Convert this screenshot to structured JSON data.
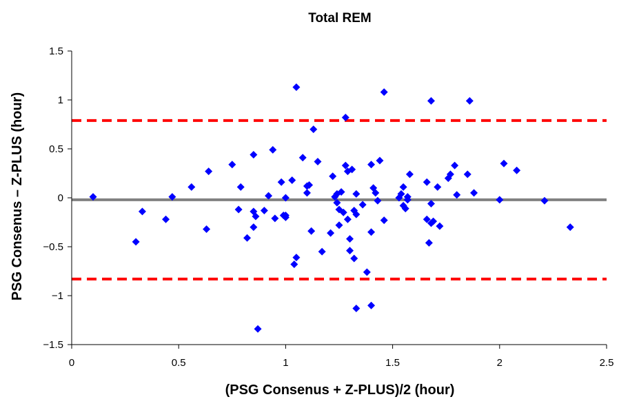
{
  "chart_data": {
    "type": "scatter",
    "title": "Total REM",
    "xlabel": "(PSG Consenus + Z-PLUS)/2 (hour)",
    "ylabel": "PSG Consenus – Z-PLUS (hour)",
    "xlim": [
      0,
      2.5
    ],
    "ylim": [
      -1.5,
      1.5
    ],
    "x_ticks": [
      "0",
      "0.5",
      "1",
      "1.5",
      "2",
      "2.5"
    ],
    "y_ticks": [
      "1.5",
      "1",
      "0.5",
      "0",
      "−0.5",
      "−1",
      "−1.5"
    ],
    "x_tick_values": [
      0,
      0.5,
      1,
      1.5,
      2,
      2.5
    ],
    "y_tick_values": [
      1.5,
      1,
      0.5,
      0,
      -0.5,
      -1,
      -1.5
    ],
    "grid": false,
    "legend": "none",
    "colors": {
      "points": "#0000ff",
      "mean_line": "#808080",
      "limit_lines": "#ff0000",
      "axes": "#000000"
    },
    "reference_lines": {
      "mean": -0.02,
      "upper_limit": 0.79,
      "lower_limit": -0.83
    },
    "series": [
      {
        "points": [
          [
            0.1,
            0.01
          ],
          [
            0.3,
            -0.45
          ],
          [
            0.33,
            -0.14
          ],
          [
            0.44,
            -0.22
          ],
          [
            0.47,
            0.01
          ],
          [
            0.56,
            0.11
          ],
          [
            0.63,
            -0.32
          ],
          [
            0.64,
            0.27
          ],
          [
            0.75,
            0.34
          ],
          [
            0.78,
            -0.12
          ],
          [
            0.79,
            0.11
          ],
          [
            0.82,
            -0.41
          ],
          [
            0.85,
            0.44
          ],
          [
            0.85,
            -0.14
          ],
          [
            0.85,
            -0.3
          ],
          [
            0.86,
            -0.19
          ],
          [
            0.87,
            -1.34
          ],
          [
            0.9,
            -0.13
          ],
          [
            0.92,
            0.02
          ],
          [
            0.94,
            0.49
          ],
          [
            0.95,
            -0.21
          ],
          [
            0.98,
            0.16
          ],
          [
            0.99,
            -0.18
          ],
          [
            1.0,
            -0.2
          ],
          [
            1.0,
            -0.18
          ],
          [
            1.0,
            0.0
          ],
          [
            1.03,
            0.18
          ],
          [
            1.04,
            -0.68
          ],
          [
            1.05,
            -0.61
          ],
          [
            1.05,
            1.13
          ],
          [
            1.08,
            0.41
          ],
          [
            1.1,
            0.12
          ],
          [
            1.1,
            0.05
          ],
          [
            1.11,
            0.13
          ],
          [
            1.12,
            -0.34
          ],
          [
            1.13,
            0.7
          ],
          [
            1.15,
            0.37
          ],
          [
            1.17,
            -0.55
          ],
          [
            1.21,
            -0.36
          ],
          [
            1.22,
            0.22
          ],
          [
            1.23,
            0.01
          ],
          [
            1.24,
            -0.05
          ],
          [
            1.24,
            0.04
          ],
          [
            1.25,
            -0.12
          ],
          [
            1.25,
            -0.28
          ],
          [
            1.26,
            0.06
          ],
          [
            1.27,
            -0.15
          ],
          [
            1.28,
            0.82
          ],
          [
            1.28,
            0.33
          ],
          [
            1.29,
            -0.22
          ],
          [
            1.29,
            0.27
          ],
          [
            1.3,
            -0.42
          ],
          [
            1.3,
            -0.54
          ],
          [
            1.31,
            0.29
          ],
          [
            1.32,
            -0.62
          ],
          [
            1.32,
            -0.13
          ],
          [
            1.33,
            -0.17
          ],
          [
            1.33,
            0.04
          ],
          [
            1.33,
            -1.13
          ],
          [
            1.36,
            -0.07
          ],
          [
            1.38,
            -0.76
          ],
          [
            1.4,
            -1.1
          ],
          [
            1.4,
            0.34
          ],
          [
            1.4,
            -0.35
          ],
          [
            1.41,
            0.1
          ],
          [
            1.42,
            0.05
          ],
          [
            1.43,
            -0.03
          ],
          [
            1.44,
            0.38
          ],
          [
            1.46,
            -0.23
          ],
          [
            1.46,
            1.08
          ],
          [
            1.53,
            0.0
          ],
          [
            1.54,
            0.04
          ],
          [
            1.55,
            0.11
          ],
          [
            1.55,
            -0.08
          ],
          [
            1.56,
            -0.11
          ],
          [
            1.57,
            0.01
          ],
          [
            1.57,
            -0.02
          ],
          [
            1.58,
            0.24
          ],
          [
            1.66,
            0.16
          ],
          [
            1.66,
            -0.22
          ],
          [
            1.67,
            -0.46
          ],
          [
            1.68,
            -0.06
          ],
          [
            1.68,
            -0.26
          ],
          [
            1.68,
            0.99
          ],
          [
            1.69,
            -0.24
          ],
          [
            1.71,
            0.11
          ],
          [
            1.72,
            -0.29
          ],
          [
            1.76,
            0.2
          ],
          [
            1.77,
            0.24
          ],
          [
            1.79,
            0.33
          ],
          [
            1.8,
            0.03
          ],
          [
            1.85,
            0.24
          ],
          [
            1.86,
            0.99
          ],
          [
            1.88,
            0.05
          ],
          [
            2.0,
            -0.02
          ],
          [
            2.02,
            0.35
          ],
          [
            2.08,
            0.28
          ],
          [
            2.21,
            -0.03
          ],
          [
            2.33,
            -0.3
          ]
        ]
      }
    ]
  }
}
